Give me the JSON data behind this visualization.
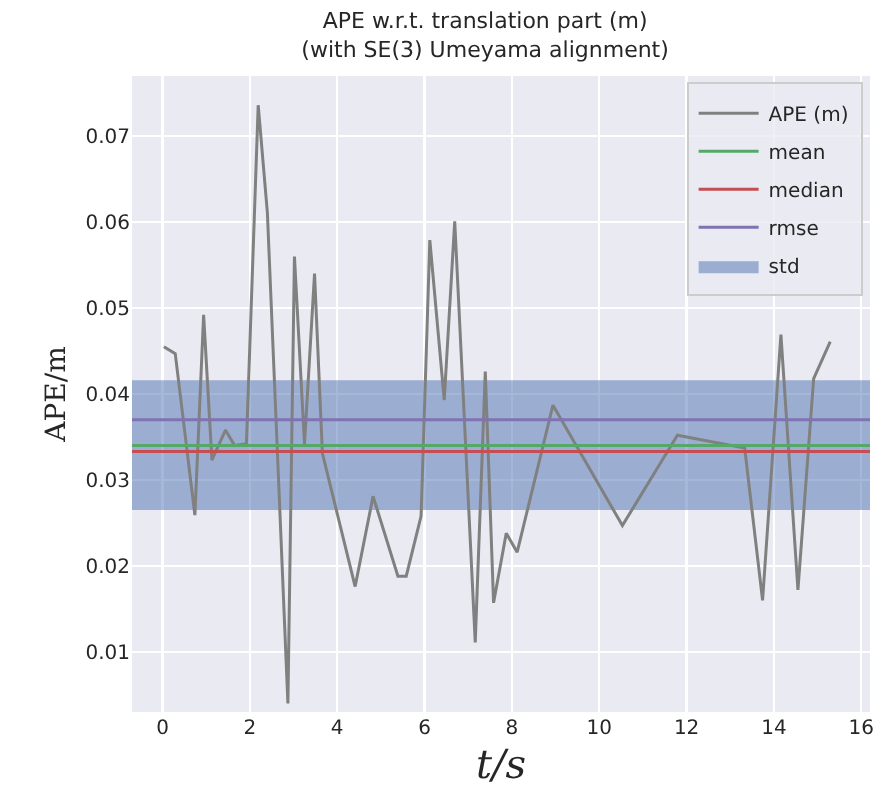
{
  "chart_data": {
    "type": "line",
    "title": "APE w.r.t. translation part (m)\n(with SE(3) Umeyama alignment)",
    "xlabel": "t/s",
    "ylabel": "APE/m",
    "x": [
      0.03,
      0.29,
      0.74,
      0.94,
      1.13,
      1.44,
      1.65,
      1.92,
      2.19,
      2.4,
      2.87,
      3.02,
      3.25,
      3.48,
      3.66,
      4.41,
      4.82,
      5.39,
      5.58,
      5.92,
      6.12,
      6.45,
      6.69,
      7.16,
      7.39,
      7.58,
      7.87,
      8.12,
      8.94,
      10.53,
      11.79,
      13.33,
      13.74,
      14.16,
      14.55,
      14.91,
      15.29
    ],
    "series": [
      {
        "name": "APE (m)",
        "color": "#808080",
        "values": [
          0.0455,
          0.0447,
          0.0259,
          0.0492,
          0.0323,
          0.0358,
          0.034,
          0.0342,
          0.0736,
          0.0611,
          0.004,
          0.056,
          0.0342,
          0.054,
          0.0331,
          0.0176,
          0.0281,
          0.0188,
          0.0188,
          0.0258,
          0.0579,
          0.0393,
          0.0601,
          0.0111,
          0.0426,
          0.0157,
          0.0238,
          0.0216,
          0.0387,
          0.0247,
          0.0352,
          0.0337,
          0.016,
          0.0469,
          0.0172,
          0.0418,
          0.0461
        ]
      }
    ],
    "ref_lines": [
      {
        "axis": "y",
        "value": 0.034,
        "label": "mean",
        "color": "#55a868"
      },
      {
        "axis": "y",
        "value": 0.0333,
        "label": "median",
        "color": "#c44e52"
      },
      {
        "axis": "y",
        "value": 0.037,
        "label": "rmse",
        "color": "#8172b2"
      }
    ],
    "bands": [
      {
        "axis": "y",
        "from": 0.0265,
        "to": 0.0416,
        "label": "std",
        "color": "#4c72b0"
      }
    ],
    "xlim": [
      -0.7,
      16.2
    ],
    "ylim": [
      0.003,
      0.077
    ],
    "xticks": [
      0,
      2,
      4,
      6,
      8,
      10,
      12,
      14,
      16
    ],
    "yticks": [
      0.01,
      0.02,
      0.03,
      0.04,
      0.05,
      0.06,
      0.07
    ],
    "grid": true,
    "legend": "top right",
    "marker": "none",
    "line_style": "solid"
  }
}
